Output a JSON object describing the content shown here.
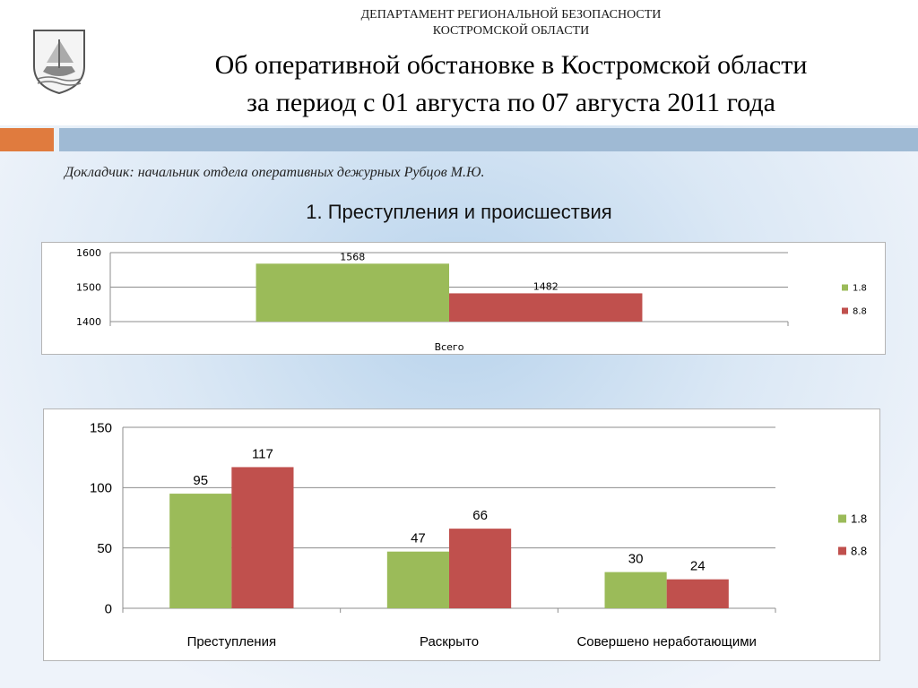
{
  "header": {
    "department": "ДЕПАРТАМЕНТ РЕГИОНАЛЬНОЙ БЕЗОПАСНОСТИ",
    "region": "КОСТРОМСКОЙ ОБЛАСТИ",
    "title_line1": "Об оперативной обстановке в Костромской области",
    "title_line2": "за период с 01 августа по 07 августа 2011 года"
  },
  "reporter": "Докладчик: начальник отдела оперативных дежурных Рубцов М.Ю.",
  "section_title": "1. Преступления и происшествия",
  "colors": {
    "series1": "#9bbb59",
    "series2": "#c0504d",
    "orange": "#e07b3e",
    "blue_bar": "#9fbad4"
  },
  "chart_data": [
    {
      "type": "bar",
      "categories": [
        "Всего"
      ],
      "series": [
        {
          "name": "1.8",
          "values": [
            1568
          ]
        },
        {
          "name": "8.8",
          "values": [
            1482
          ]
        }
      ],
      "ylim": [
        1400,
        1600
      ],
      "yticks": [
        1400,
        1500,
        1600
      ],
      "grid": true,
      "legend": "right"
    },
    {
      "type": "bar",
      "categories": [
        "Преступления",
        "Раскрыто",
        "Совершено неработающими"
      ],
      "series": [
        {
          "name": "1.8",
          "values": [
            95,
            47,
            30
          ]
        },
        {
          "name": "8.8",
          "values": [
            117,
            66,
            24
          ]
        }
      ],
      "ylim": [
        0,
        150
      ],
      "yticks": [
        0,
        50,
        100,
        150
      ],
      "grid": true,
      "legend": "right"
    }
  ]
}
